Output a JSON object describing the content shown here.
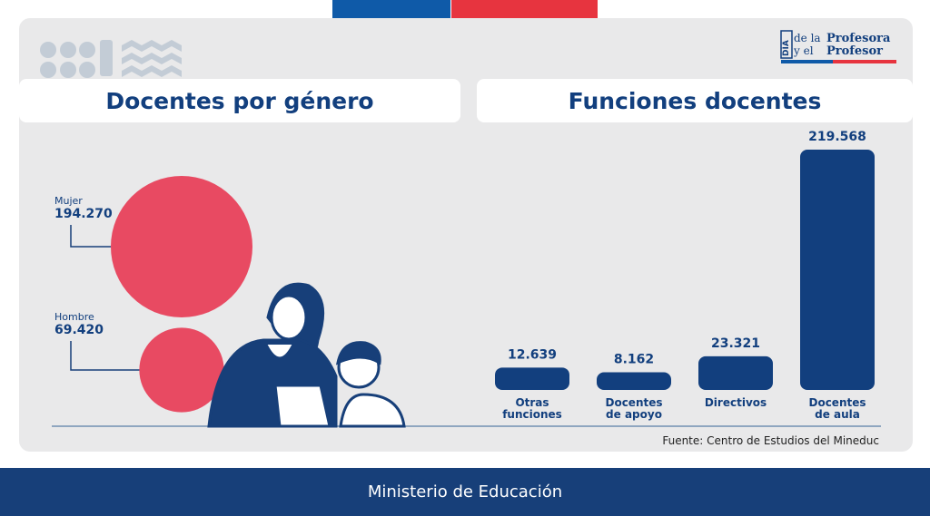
{
  "logo": {
    "line1_a": "de la",
    "line1_b": "Profesora",
    "line2_a": "y el",
    "line2_b": "Profesor",
    "mark": "DÍA"
  },
  "gender": {
    "title": "Docentes por género",
    "items": [
      {
        "label": "Mujer",
        "value": "194.270",
        "n": 194270
      },
      {
        "label": "Hombre",
        "value": "69.420",
        "n": 69420
      }
    ],
    "color": "#e84a62"
  },
  "functions": {
    "title": "Funciones docentes"
  },
  "chart_data": {
    "type": "bar",
    "title": "Funciones docentes",
    "categories": [
      "Otras funciones",
      "Docentes de apoyo",
      "Directivos",
      "Docentes de aula"
    ],
    "category_lines": [
      [
        "Otras",
        "funciones"
      ],
      [
        "Docentes",
        "de apoyo"
      ],
      [
        "Directivos"
      ],
      [
        "Docentes",
        "de aula"
      ]
    ],
    "values": [
      12639,
      8162,
      23321,
      219568
    ],
    "value_labels": [
      "12.639",
      "8.162",
      "23.321",
      "219.568"
    ],
    "color": "#123f7e"
  },
  "source": "Fuente: Centro de Estudios del Mineduc",
  "footer": "Ministerio de Educación",
  "colors": {
    "blue": "#0f5aa8",
    "red": "#e7343f",
    "navy": "#173f79"
  }
}
